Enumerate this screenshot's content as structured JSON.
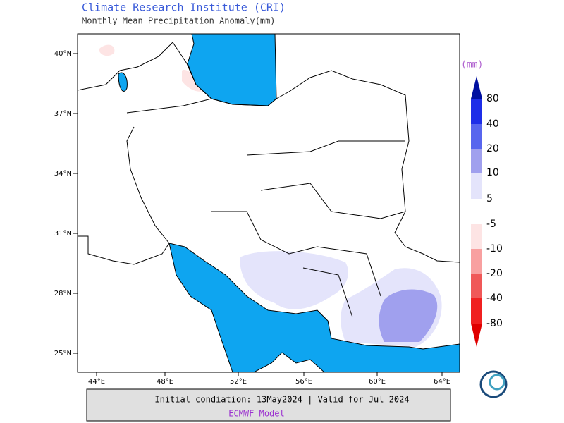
{
  "header": {
    "title": "Climate Research Institute (CRI)",
    "subtitle": "Monthly Mean Precipitation Anomaly(mm)"
  },
  "map": {
    "lon_labels": [
      "44°E",
      "48°E",
      "52°E",
      "56°E",
      "60°E",
      "64°E"
    ],
    "lat_labels": [
      "40°N",
      "37°N",
      "34°N",
      "31°N",
      "28°N",
      "25°N"
    ]
  },
  "legend": {
    "unit": "(mm)",
    "positive": [
      "80",
      "40",
      "20",
      "10",
      "5"
    ],
    "negative": [
      "-5",
      "-10",
      "-20",
      "-40",
      "-80"
    ]
  },
  "footer": {
    "line1": "Initial condiation: 13May2024 | Valid for Jul 2024",
    "model": "ECMWF Model"
  }
}
